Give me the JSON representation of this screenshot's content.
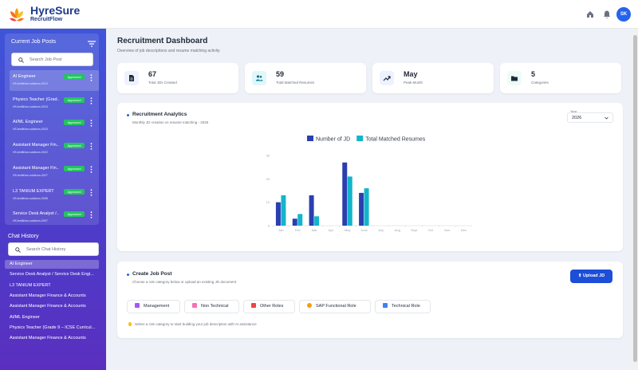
{
  "header": {
    "brand": "HyreSure",
    "sub_brand": "RecruitFlow",
    "avatar_initials": "SK",
    "icons": [
      "home-icon",
      "bell-icon"
    ]
  },
  "sidebar": {
    "jobs_title": "Current Job Posts",
    "search_placeholder": "Search Job Post",
    "jobs": [
      {
        "title": "AI Engineer",
        "id": "HS-testfirlow-solutions-0010",
        "status": "Approved"
      },
      {
        "title": "Physics Teacher (Grad...",
        "id": "HS-testfirlow-solutions-0015",
        "status": "Approved"
      },
      {
        "title": "AI/ML Engineer",
        "id": "HS-testfirlow-solutions-0023",
        "status": "Approved"
      },
      {
        "title": "Assistant Manager Fin...",
        "id": "HS-testfirlow-solutions-0022",
        "status": "Approved"
      },
      {
        "title": "Assistant Manager Fin...",
        "id": "HS-testfirlow-solutions-0027",
        "status": "Approved"
      },
      {
        "title": "L3 TANIUM EXPERT",
        "id": "HS-testfirlow-solutions-0008",
        "status": "Approved"
      },
      {
        "title": "Service Desk Analyst /...",
        "id": "HS-testfirlow-solutions-0007",
        "status": "Approved"
      }
    ],
    "chat_title": "Chat History",
    "chat_search_placeholder": "Search Chat History",
    "chats": [
      "AI Engineer",
      "Service Desk Analyst / Service Desk Engi...",
      "L3 TANIUM EXPERT",
      "Assistant Manager Finance & Accounts",
      "Assistant Manager Finance & Accounts",
      "AI/ML Engineer",
      "Physics Teacher (Grade 9 – ICSE Curricul...",
      "Assistant Manager Finance & Accounts"
    ]
  },
  "main": {
    "title": "Recruitment Dashboard",
    "subtitle": "Overview of job descriptions and resume matching activity",
    "stats": [
      {
        "value": "67",
        "label": "Total JDs Created",
        "icon": "document-icon"
      },
      {
        "value": "59",
        "label": "Total Matched Resumes",
        "icon": "people-icon"
      },
      {
        "value": "May",
        "label": "Peak Month",
        "icon": "trend-icon"
      },
      {
        "value": "5",
        "label": "Categories",
        "icon": "folder-icon"
      }
    ],
    "analytics": {
      "title": "Recruitment Analytics",
      "subtitle": "Monthly JD creation vs resume matching - 2026",
      "year_label": "Year",
      "year_value": "2026"
    },
    "create": {
      "title": "Create Job Post",
      "subtitle": "Choose a role category below or upload an existing JD document",
      "upload_label": "Upload JD",
      "categories": [
        "Management",
        "Non Technical",
        "Other Roles",
        "SAP Functional Role",
        "Technical Role"
      ],
      "hint": "Select a role category to start building your job description with AI assistance"
    }
  },
  "colors": {
    "jd": "#2a3fb0",
    "resumes": "#12b5cb",
    "accent": "#1d4ed8"
  },
  "chart_data": {
    "type": "bar",
    "categories": [
      "Jan",
      "Feb",
      "Mar",
      "Apr",
      "May",
      "June",
      "July",
      "Aug",
      "Sept",
      "Oct",
      "Nov",
      "Dec"
    ],
    "series": [
      {
        "name": "Number of JD",
        "values": [
          10,
          3,
          13,
          0,
          27,
          14,
          0,
          0,
          0,
          0,
          0,
          0
        ]
      },
      {
        "name": "Total Matched Resumes",
        "values": [
          13,
          5,
          4,
          0,
          21,
          16,
          0,
          0,
          0,
          0,
          0,
          0
        ]
      }
    ],
    "yticks": [
      "0",
      "10",
      "20",
      "30"
    ],
    "ylim": [
      0,
      30
    ],
    "legend": "top",
    "grid": false
  }
}
